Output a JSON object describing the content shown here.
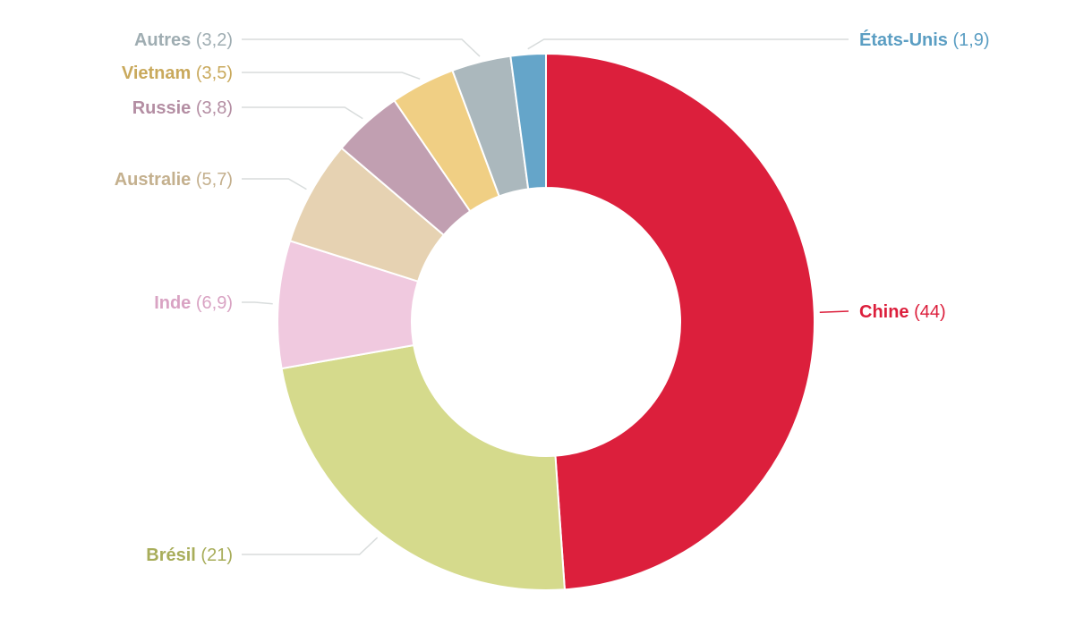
{
  "chart_data": {
    "type": "pie",
    "subtype": "donut",
    "title": "",
    "slices": [
      {
        "label": "Chine",
        "value": 44,
        "value_text": "(44)",
        "color": "#dc1f3c",
        "text_color": "#dc1f3c"
      },
      {
        "label": "Brésil",
        "value": 21,
        "value_text": "(21)",
        "color": "#d5da8c",
        "text_color": "#a8ad5a"
      },
      {
        "label": "Inde",
        "value": 6.9,
        "value_text": "(6,9)",
        "color": "#f0c9df",
        "text_color": "#d9a3c3"
      },
      {
        "label": "Australie",
        "value": 5.7,
        "value_text": "(5,7)",
        "color": "#e6d2b2",
        "text_color": "#c4b08e"
      },
      {
        "label": "Russie",
        "value": 3.8,
        "value_text": "(3,8)",
        "color": "#c19fb1",
        "text_color": "#b48ea3"
      },
      {
        "label": "Vietnam",
        "value": 3.5,
        "value_text": "(3,5)",
        "color": "#f0cf84",
        "text_color": "#c9a95c"
      },
      {
        "label": "Autres",
        "value": 3.2,
        "value_text": "(3,2)",
        "color": "#abb8bd",
        "text_color": "#9fadb2"
      },
      {
        "label": "États-Unis",
        "value": 1.9,
        "value_text": "(1,9)",
        "color": "#65a5c9",
        "text_color": "#5b9ec3"
      }
    ]
  }
}
